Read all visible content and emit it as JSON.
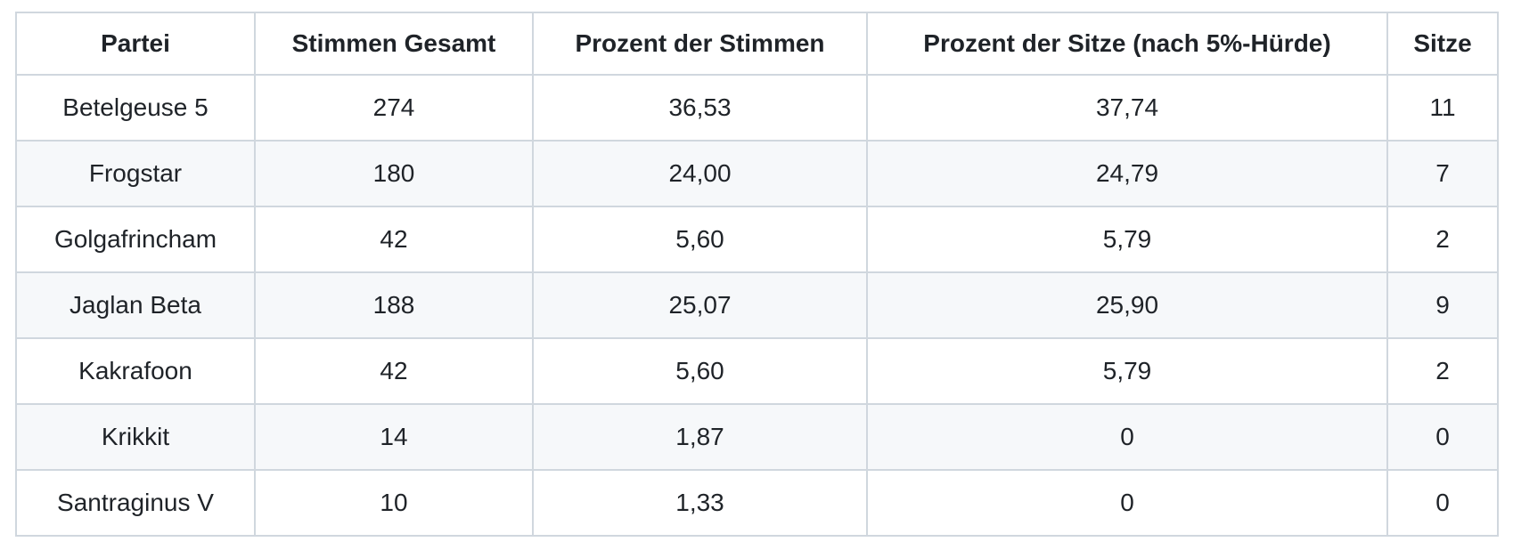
{
  "chart_data": {
    "type": "table",
    "columns": [
      "Partei",
      "Stimmen Gesamt",
      "Prozent der Stimmen",
      "Prozent der Sitze (nach 5%-Hürde)",
      "Sitze"
    ],
    "rows": [
      [
        "Betelgeuse 5",
        "274",
        "36,53",
        "37,74",
        "11"
      ],
      [
        "Frogstar",
        "180",
        "24,00",
        "24,79",
        "7"
      ],
      [
        "Golgafrincham",
        "42",
        "5,60",
        "5,79",
        "2"
      ],
      [
        "Jaglan Beta",
        "188",
        "25,07",
        "25,90",
        "9"
      ],
      [
        "Kakrafoon",
        "42",
        "5,60",
        "5,79",
        "2"
      ],
      [
        "Krikkit",
        "14",
        "1,87",
        "0",
        "0"
      ],
      [
        "Santraginus V",
        "10",
        "1,33",
        "0",
        "0"
      ]
    ],
    "layout_hints": {
      "striped_rows": "even data rows shaded",
      "alignment": "center",
      "grid": "full cell borders"
    }
  },
  "style": {
    "background": "#ffffff",
    "text_color": "#1f2328",
    "border_color": "#d0d7de",
    "stripe_color": "#f6f8fa"
  }
}
